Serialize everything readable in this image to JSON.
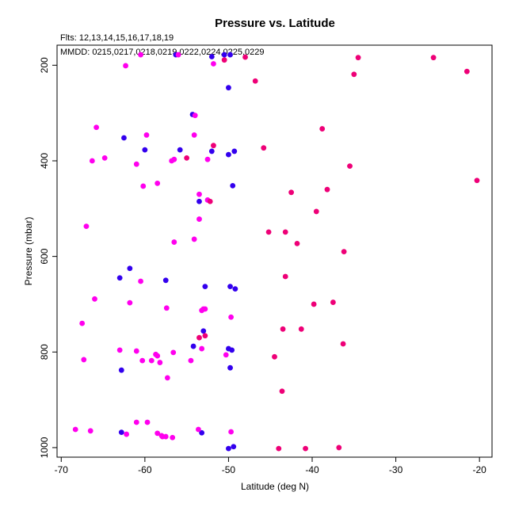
{
  "chart_data": {
    "type": "scatter",
    "title": "Pressure vs. Latitude",
    "subtitle": "Flts: 12,13,14,15,16,17,18,19",
    "legend_text": "MMDD: 0215,0217,0218,0219,0222,0224,0225,0229",
    "xlabel": "Latitude (deg N)",
    "ylabel": "Pressure (mbar)",
    "xlim": [
      -70.5,
      -18.5
    ],
    "ylim": [
      1020,
      158
    ],
    "y_reversed": true,
    "x_ticks": [
      -70,
      -60,
      -50,
      -40,
      -30,
      -20
    ],
    "y_ticks": [
      200,
      400,
      600,
      800,
      1000
    ],
    "grid": false,
    "colors": {
      "series_blue": "#3300ee",
      "series_pink": "#ff00ee",
      "series_crimson": "#ee0077"
    },
    "series": [
      {
        "color": "#3300ee",
        "points": [
          [
            -56.3,
            178
          ],
          [
            -50.5,
            178
          ],
          [
            -49.8,
            178
          ],
          [
            -52,
            182
          ],
          [
            -50,
            247
          ],
          [
            -54.3,
            303
          ],
          [
            -62.5,
            352
          ],
          [
            -60,
            377
          ],
          [
            -55.8,
            377
          ],
          [
            -52,
            380
          ],
          [
            -49.3,
            380
          ],
          [
            -50,
            387
          ],
          [
            -49.5,
            452
          ],
          [
            -53.5,
            485
          ],
          [
            -61.8,
            625
          ],
          [
            -63,
            645
          ],
          [
            -57.5,
            650
          ],
          [
            -52.8,
            663
          ],
          [
            -49.8,
            663
          ],
          [
            -49.2,
            668
          ],
          [
            -53,
            756
          ],
          [
            -54.2,
            788
          ],
          [
            -50,
            793
          ],
          [
            -49.6,
            796
          ],
          [
            -62.8,
            838
          ],
          [
            -49.8,
            833
          ],
          [
            -49.4,
            998
          ],
          [
            -62.8,
            968
          ],
          [
            -53.2,
            969
          ],
          [
            -50,
            1002
          ]
        ]
      },
      {
        "color": "#ff00ee",
        "points": [
          [
            -60.5,
            178
          ],
          [
            -56,
            178
          ],
          [
            -51.8,
            197
          ],
          [
            -62.3,
            201
          ],
          [
            -54,
            305
          ],
          [
            -65.8,
            330
          ],
          [
            -59.8,
            346
          ],
          [
            -54.1,
            346
          ],
          [
            -66.3,
            400
          ],
          [
            -64.8,
            394
          ],
          [
            -61,
            407
          ],
          [
            -56.5,
            397
          ],
          [
            -56.8,
            400
          ],
          [
            -52.5,
            397
          ],
          [
            -60.2,
            453
          ],
          [
            -58.5,
            447
          ],
          [
            -53.5,
            470
          ],
          [
            -52.5,
            482
          ],
          [
            -53.5,
            522
          ],
          [
            -67,
            537
          ],
          [
            -54.1,
            564
          ],
          [
            -56.5,
            570
          ],
          [
            -60.5,
            652
          ],
          [
            -66,
            689
          ],
          [
            -61.8,
            697
          ],
          [
            -57.4,
            708
          ],
          [
            -53,
            710
          ],
          [
            -52.8,
            710
          ],
          [
            -53.2,
            713
          ],
          [
            -49.7,
            727
          ],
          [
            -67.5,
            740
          ],
          [
            -63,
            796
          ],
          [
            -61,
            798
          ],
          [
            -56.6,
            801
          ],
          [
            -58.7,
            805
          ],
          [
            -58.5,
            808
          ],
          [
            -53.2,
            793
          ],
          [
            -50.3,
            806
          ],
          [
            -67.3,
            816
          ],
          [
            -60.3,
            818
          ],
          [
            -59.2,
            818
          ],
          [
            -58.2,
            822
          ],
          [
            -54.5,
            818
          ],
          [
            -57.3,
            854
          ],
          [
            -68.3,
            962
          ],
          [
            -66.5,
            965
          ],
          [
            -61,
            947
          ],
          [
            -59.7,
            947
          ],
          [
            -53.6,
            962
          ],
          [
            -49.7,
            967
          ],
          [
            -62.2,
            972
          ],
          [
            -58.5,
            970
          ],
          [
            -57.9,
            977
          ],
          [
            -57.5,
            977
          ],
          [
            -56.7,
            979
          ],
          [
            -58,
            975
          ]
        ]
      },
      {
        "color": "#ee0077",
        "points": [
          [
            -50.5,
            189
          ],
          [
            -48,
            183
          ],
          [
            -34.5,
            184
          ],
          [
            -25.5,
            184
          ],
          [
            -21.5,
            213
          ],
          [
            -35,
            219
          ],
          [
            -46.8,
            233
          ],
          [
            -38.8,
            333
          ],
          [
            -45.8,
            373
          ],
          [
            -51.8,
            368
          ],
          [
            -55,
            394
          ],
          [
            -35.5,
            411
          ],
          [
            -20.3,
            441
          ],
          [
            -42.5,
            466
          ],
          [
            -38.2,
            460
          ],
          [
            -52.2,
            485
          ],
          [
            -39.5,
            506
          ],
          [
            -45.2,
            549
          ],
          [
            -43.2,
            549
          ],
          [
            -41.8,
            573
          ],
          [
            -36.2,
            590
          ],
          [
            -43.2,
            642
          ],
          [
            -37.5,
            696
          ],
          [
            -39.8,
            700
          ],
          [
            -43.5,
            752
          ],
          [
            -41.3,
            752
          ],
          [
            -52.8,
            766
          ],
          [
            -53.5,
            770
          ],
          [
            -36.3,
            783
          ],
          [
            -44.5,
            810
          ],
          [
            -43.6,
            882
          ],
          [
            -44,
            1002
          ],
          [
            -40.8,
            1002
          ],
          [
            -36.8,
            1000
          ]
        ]
      }
    ]
  }
}
